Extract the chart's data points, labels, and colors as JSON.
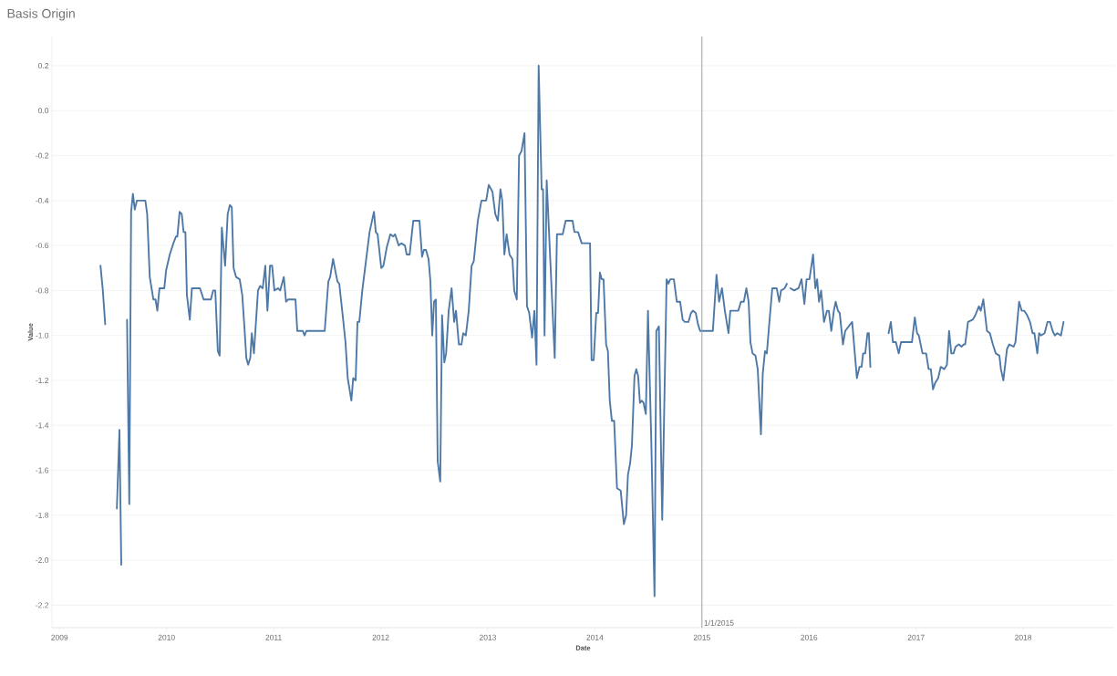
{
  "chart_data": {
    "type": "line",
    "title": "Basis Origin",
    "xlabel": "Date",
    "ylabel": "Value",
    "xlim": [
      2008.93,
      2018.85
    ],
    "ylim": [
      -2.3,
      0.33
    ],
    "xticks": [
      2009,
      2010,
      2011,
      2012,
      2013,
      2014,
      2015,
      2016,
      2017,
      2018
    ],
    "yticks": [
      -2.2,
      {
        "value": -2.0,
        "label": "-2.0"
      },
      -1.8,
      -1.6,
      -1.4,
      -1.2,
      {
        "value": -1.0,
        "label": "-1.0"
      },
      -0.8,
      -0.6,
      -0.4,
      -0.2,
      {
        "value": 0,
        "label": "0.0"
      },
      0.2
    ],
    "grid": "y",
    "line_style": "solid",
    "marker": "none",
    "ref_lines": [
      {
        "axis": "x",
        "value": 2015,
        "label": "1/1/2015",
        "color": "#a0a0a0"
      }
    ],
    "series": [
      {
        "color": "#4e79a7",
        "x": [
          2009.383,
          2009.405,
          2009.427,
          2009.48,
          2009.536,
          2009.56,
          2009.577,
          2009.6,
          2009.631,
          2009.652,
          2009.669,
          2009.686,
          2009.703,
          2009.723,
          2009.802,
          2009.819,
          2009.843,
          2009.877,
          2009.897,
          2009.914,
          2009.934,
          2009.979,
          2009.996,
          2010.03,
          2010.064,
          2010.088,
          2010.101,
          2010.122,
          2010.142,
          2010.159,
          2010.176,
          2010.19,
          2010.217,
          2010.237,
          2010.312,
          2010.346,
          2010.414,
          2010.435,
          2010.455,
          2010.479,
          2010.496,
          2010.516,
          2010.547,
          2010.571,
          2010.591,
          2010.609,
          2010.626,
          2010.649,
          2010.683,
          2010.707,
          2010.728,
          2010.745,
          2010.762,
          2010.782,
          2010.796,
          2010.816,
          2010.854,
          2010.874,
          2010.898,
          2010.922,
          2010.942,
          2010.966,
          2010.986,
          2011.007,
          2011.041,
          2011.061,
          2011.095,
          2011.116,
          2011.136,
          2011.204,
          2011.221,
          2011.272,
          2011.289,
          2011.306,
          2011.426,
          2011.477,
          2011.511,
          2011.528,
          2011.555,
          2011.579,
          2011.596,
          2011.613,
          2011.647,
          2011.671,
          2011.692,
          2011.726,
          2011.743,
          2011.766,
          2011.783,
          2011.8,
          2011.828,
          2011.862,
          2011.896,
          2011.937,
          2011.954,
          2011.971,
          2012.005,
          2012.025,
          2012.056,
          2012.09,
          2012.117,
          2012.134,
          2012.168,
          2012.192,
          2012.226,
          2012.243,
          2012.27,
          2012.304,
          2012.362,
          2012.386,
          2012.403,
          2012.423,
          2012.447,
          2012.464,
          2012.481,
          2012.498,
          2012.515,
          2012.532,
          2012.556,
          2012.573,
          2012.594,
          2012.611,
          2012.635,
          2012.662,
          2012.686,
          2012.703,
          2012.73,
          2012.754,
          2012.771,
          2012.795,
          2012.822,
          2012.849,
          2012.869,
          2012.907,
          2012.941,
          2012.985,
          2013.009,
          2013.043,
          2013.07,
          2013.094,
          2013.118,
          2013.135,
          2013.155,
          2013.176,
          2013.203,
          2013.23,
          2013.247,
          2013.271,
          2013.292,
          2013.315,
          2013.343,
          2013.366,
          2013.387,
          2013.414,
          2013.435,
          2013.455,
          2013.475,
          2013.503,
          2013.516,
          2013.53,
          2013.55,
          2013.625,
          2013.646,
          2013.7,
          2013.727,
          2013.792,
          2013.809,
          2013.843,
          2013.877,
          2013.955,
          2013.969,
          2013.989,
          2014.013,
          2014.03,
          2014.047,
          2014.064,
          2014.081,
          2014.105,
          2014.122,
          2014.139,
          2014.159,
          2014.18,
          2014.207,
          2014.241,
          2014.271,
          2014.292,
          2014.309,
          2014.329,
          2014.346,
          2014.37,
          2014.387,
          2014.404,
          2014.421,
          2014.438,
          2014.455,
          2014.476,
          2014.496,
          2014.527,
          2014.557,
          2014.574,
          2014.598,
          2014.629,
          2014.67,
          2014.687,
          2014.704,
          2014.738,
          2014.765,
          2014.796,
          2014.82,
          2014.84,
          2014.874,
          2014.898,
          2014.915,
          2014.942,
          2014.963,
          2014.983,
          2015.102,
          2015.136,
          2015.16,
          2015.187,
          2015.214,
          2015.248,
          2015.265,
          2015.34,
          2015.364,
          2015.391,
          2015.415,
          2015.436,
          2015.453,
          2015.473,
          2015.5,
          2015.521,
          2015.551,
          2015.568,
          2015.589,
          2015.606,
          2015.63,
          2015.657,
          2015.698,
          2015.722,
          2015.739,
          2015.773,
          2015.793,
          2015.81,
          2015.827,
          2015.861,
          2015.902,
          2015.93,
          2015.957,
          2015.977,
          2016.004,
          2016.038,
          2016.059,
          2016.076,
          2016.093,
          2016.113,
          2016.14,
          2016.168,
          2016.185,
          2016.208,
          2016.232,
          2016.249,
          2016.27,
          2016.287,
          2016.317,
          2016.338,
          2016.403,
          2016.447,
          2016.471,
          2016.491,
          2016.505,
          2016.525,
          2016.546,
          2016.559,
          2016.573,
          2016.66,
          2016.743,
          2016.764,
          2016.784,
          2016.811,
          2016.838,
          2016.859,
          2016.961,
          2016.988,
          2017.009,
          2017.025,
          2017.06,
          2017.094,
          2017.117,
          2017.138,
          2017.158,
          2017.179,
          2017.206,
          2017.23,
          2017.264,
          2017.288,
          2017.308,
          2017.329,
          2017.349,
          2017.369,
          2017.4,
          2017.424,
          2017.444,
          2017.458,
          2017.485,
          2017.529,
          2017.553,
          2017.587,
          2017.604,
          2017.628,
          2017.662,
          2017.689,
          2017.717,
          2017.744,
          2017.778,
          2017.792,
          2017.815,
          2017.849,
          2017.87,
          2017.911,
          2017.928,
          2017.962,
          2017.986,
          2018.009,
          2018.037,
          2018.064,
          2018.088,
          2018.105,
          2018.132,
          2018.149,
          2018.166,
          2018.2,
          2018.227,
          2018.251,
          2018.275,
          2018.295,
          2018.319,
          2018.353,
          2018.377
        ],
        "values": [
          -0.69,
          -0.8,
          -0.95,
          null,
          -1.77,
          -1.42,
          -2.02,
          null,
          -0.93,
          -1.75,
          -0.45,
          -0.37,
          -0.44,
          -0.4,
          -0.4,
          -0.46,
          -0.74,
          -0.84,
          -0.84,
          -0.89,
          -0.79,
          -0.79,
          -0.71,
          -0.64,
          -0.59,
          -0.56,
          -0.56,
          -0.45,
          -0.46,
          -0.54,
          -0.54,
          -0.82,
          -0.93,
          -0.79,
          -0.79,
          -0.84,
          -0.84,
          -0.8,
          -0.8,
          -1.07,
          -1.09,
          -0.52,
          -0.69,
          -0.46,
          -0.42,
          -0.43,
          -0.7,
          -0.74,
          -0.75,
          -0.82,
          -0.97,
          -1.1,
          -1.13,
          -1.1,
          -0.99,
          -1.08,
          -0.8,
          -0.78,
          -0.79,
          -0.69,
          -0.89,
          -0.69,
          -0.69,
          -0.8,
          -0.79,
          -0.8,
          -0.74,
          -0.85,
          -0.84,
          -0.84,
          -0.98,
          -0.98,
          -1.0,
          -0.98,
          -0.98,
          -0.98,
          -0.76,
          -0.74,
          -0.66,
          -0.72,
          -0.76,
          -0.77,
          -0.92,
          -1.03,
          -1.19,
          -1.29,
          -1.19,
          -1.2,
          -0.94,
          -0.94,
          -0.8,
          -0.67,
          -0.54,
          -0.45,
          -0.54,
          -0.55,
          -0.7,
          -0.69,
          -0.61,
          -0.55,
          -0.56,
          -0.55,
          -0.6,
          -0.59,
          -0.6,
          -0.64,
          -0.64,
          -0.49,
          -0.49,
          -0.65,
          -0.62,
          -0.62,
          -0.66,
          -0.76,
          -1.0,
          -0.85,
          -0.84,
          -1.56,
          -1.65,
          -0.91,
          -1.12,
          -1.08,
          -0.89,
          -0.79,
          -0.94,
          -0.89,
          -1.04,
          -1.04,
          -0.99,
          -1.0,
          -0.89,
          -0.69,
          -0.67,
          -0.49,
          -0.4,
          -0.4,
          -0.33,
          -0.36,
          -0.46,
          -0.49,
          -0.35,
          -0.4,
          -0.64,
          -0.55,
          -0.64,
          -0.66,
          -0.8,
          -0.84,
          -0.2,
          -0.18,
          -0.1,
          -0.87,
          -0.9,
          -1.01,
          -0.89,
          -1.13,
          0.2,
          -0.35,
          -0.35,
          -1.0,
          -0.31,
          -1.1,
          -0.55,
          -0.55,
          -0.49,
          -0.49,
          -0.54,
          -0.54,
          -0.59,
          -0.59,
          -1.11,
          -1.11,
          -0.9,
          -0.9,
          -0.72,
          -0.75,
          -0.75,
          -1.04,
          -1.07,
          -1.29,
          -1.38,
          -1.38,
          -1.68,
          -1.69,
          -1.84,
          -1.8,
          -1.62,
          -1.57,
          -1.49,
          -1.18,
          -1.15,
          -1.18,
          -1.3,
          -1.29,
          -1.3,
          -1.35,
          -0.89,
          -1.47,
          -2.16,
          -0.98,
          -0.96,
          -1.82,
          -0.75,
          -0.77,
          -0.75,
          -0.75,
          -0.85,
          -0.85,
          -0.93,
          -0.94,
          -0.94,
          -0.9,
          -0.89,
          -0.9,
          -0.95,
          -0.98,
          -0.98,
          -0.73,
          -0.85,
          -0.79,
          -0.89,
          -0.99,
          -0.89,
          -0.89,
          -0.85,
          -0.85,
          -0.79,
          -0.85,
          -1.03,
          -1.08,
          -1.09,
          -1.15,
          -1.44,
          -1.17,
          -1.07,
          -1.08,
          -0.94,
          -0.79,
          -0.79,
          -0.85,
          -0.8,
          -0.79,
          -0.77,
          null,
          -0.79,
          -0.8,
          -0.79,
          -0.75,
          -0.86,
          -0.75,
          -0.75,
          -0.64,
          -0.79,
          -0.75,
          -0.85,
          -0.8,
          -0.94,
          -0.89,
          -0.89,
          -0.98,
          -0.89,
          -0.85,
          -0.89,
          -0.9,
          -1.04,
          -0.98,
          -0.94,
          -1.19,
          -1.14,
          -1.14,
          -1.08,
          -1.08,
          -0.99,
          -0.99,
          -1.14,
          null,
          -0.99,
          -0.94,
          -1.03,
          -1.03,
          -1.08,
          -1.03,
          -1.03,
          -0.92,
          -0.99,
          -1.0,
          -1.08,
          -1.08,
          -1.15,
          -1.15,
          -1.24,
          -1.21,
          -1.19,
          -1.14,
          -1.15,
          -1.13,
          -0.98,
          -1.08,
          -1.08,
          -1.05,
          -1.04,
          -1.05,
          -1.04,
          -1.04,
          -0.94,
          -0.93,
          -0.91,
          -0.87,
          -0.89,
          -0.84,
          -0.98,
          -0.99,
          -1.04,
          -1.08,
          -1.09,
          -1.15,
          -1.2,
          -1.06,
          -1.04,
          -1.05,
          -1.03,
          -0.85,
          -0.89,
          -0.89,
          -0.91,
          -0.94,
          -0.99,
          -0.99,
          -1.08,
          -0.99,
          -1.0,
          -0.99,
          -0.94,
          -0.94,
          -0.98,
          -1.0,
          -0.99,
          -1.0,
          -0.94
        ]
      }
    ]
  }
}
